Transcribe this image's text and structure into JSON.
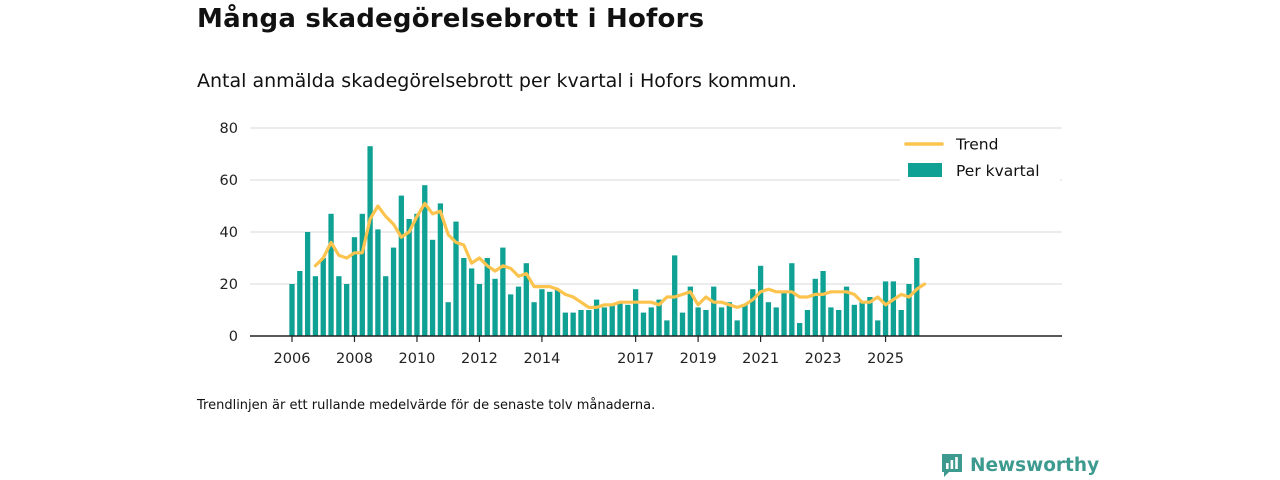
{
  "header": {
    "title": "Många skadegörelsebrott i Hofors",
    "subtitle": "Antal anmälda skadegörelsebrott per kvartal i Hofors kommun."
  },
  "footer": {
    "note": "Trendlinjen är ett rullande medelvärde för de senaste tolv månaderna.",
    "brand": "Newsworthy"
  },
  "colors": {
    "bar": "#0ea194",
    "trend": "#fcc44e",
    "grid": "#d9d9d9",
    "axis": "#222222",
    "brand": "#3d9a8e"
  },
  "chart_data": {
    "type": "bar",
    "title": "Många skadegörelsebrott i Hofors",
    "xlabel": "",
    "ylabel": "",
    "ylim": [
      0,
      80
    ],
    "yticks": [
      0,
      20,
      40,
      60,
      80
    ],
    "xtick_labels": [
      {
        "label": "2006",
        "index": 0
      },
      {
        "label": "2008",
        "index": 8
      },
      {
        "label": "2010",
        "index": 16
      },
      {
        "label": "2012",
        "index": 24
      },
      {
        "label": "2014",
        "index": 32
      },
      {
        "label": "2017",
        "index": 44
      },
      {
        "label": "2019",
        "index": 52
      },
      {
        "label": "2021",
        "index": 60
      },
      {
        "label": "2023",
        "index": 68
      },
      {
        "label": "2025",
        "index": 76
      }
    ],
    "legend": {
      "position": "top-right",
      "trend_label": "Trend",
      "bars_label": "Per kvartal"
    },
    "series": [
      {
        "name": "Per kvartal",
        "type": "bar",
        "values": [
          20,
          25,
          40,
          23,
          30,
          47,
          23,
          20,
          38,
          47,
          73,
          41,
          23,
          34,
          54,
          45,
          47,
          58,
          37,
          51,
          13,
          44,
          30,
          26,
          20,
          30,
          22,
          34,
          16,
          19,
          28,
          13,
          18,
          17,
          18,
          9,
          9,
          10,
          10,
          14,
          11,
          12,
          13,
          12,
          18,
          9,
          11,
          14,
          6,
          31,
          9,
          19,
          11,
          10,
          19,
          11,
          13,
          6,
          12,
          18,
          27,
          13,
          11,
          17,
          28,
          5,
          10,
          22,
          25,
          11,
          10,
          19,
          12,
          13,
          15,
          6,
          21,
          21,
          10,
          20,
          30
        ]
      },
      {
        "name": "Trend",
        "type": "line",
        "start_index": 3,
        "values": [
          27,
          30,
          36,
          31,
          30,
          32,
          32,
          45,
          50,
          46,
          43,
          38,
          40,
          46,
          51,
          47,
          48,
          39,
          36,
          35,
          28,
          30,
          27,
          25,
          27,
          26,
          23,
          24,
          19,
          19,
          19,
          18,
          16,
          15,
          13,
          11,
          11,
          12,
          12,
          13,
          13,
          13,
          13,
          13,
          12,
          15,
          15,
          16,
          17,
          12,
          15,
          13,
          13,
          12,
          11,
          12,
          14,
          17,
          18,
          17,
          17,
          17,
          15,
          15,
          16,
          16,
          17,
          17,
          17,
          16,
          13,
          13,
          15,
          12,
          14,
          16,
          15,
          18,
          20
        ]
      }
    ]
  }
}
